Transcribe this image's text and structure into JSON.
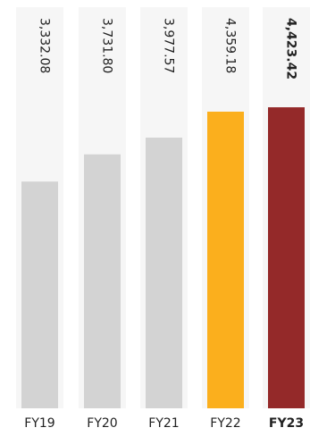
{
  "chart_data": {
    "type": "bar",
    "categories": [
      "FY19",
      "FY20",
      "FY21",
      "FY22",
      "FY23"
    ],
    "values": [
      3332.08,
      3731.8,
      3977.57,
      4359.18,
      4423.42
    ],
    "value_labels": [
      "3,332.08",
      "3,731.80",
      "3,977.57",
      "4,359.18",
      "4,423.42"
    ],
    "highlighted_category": "FY23",
    "ylim": [
      0,
      6000
    ],
    "grid": false,
    "legend": "none",
    "colors": {
      "track": "#f6f6f6",
      "default_bar": "#d3d3d3",
      "previous_year_bar": "#fbaf1d",
      "current_year_bar": "#942929",
      "text": "#222222"
    },
    "bar_colors": [
      "#d3d3d3",
      "#d3d3d3",
      "#d3d3d3",
      "#fbaf1d",
      "#942929"
    ]
  }
}
